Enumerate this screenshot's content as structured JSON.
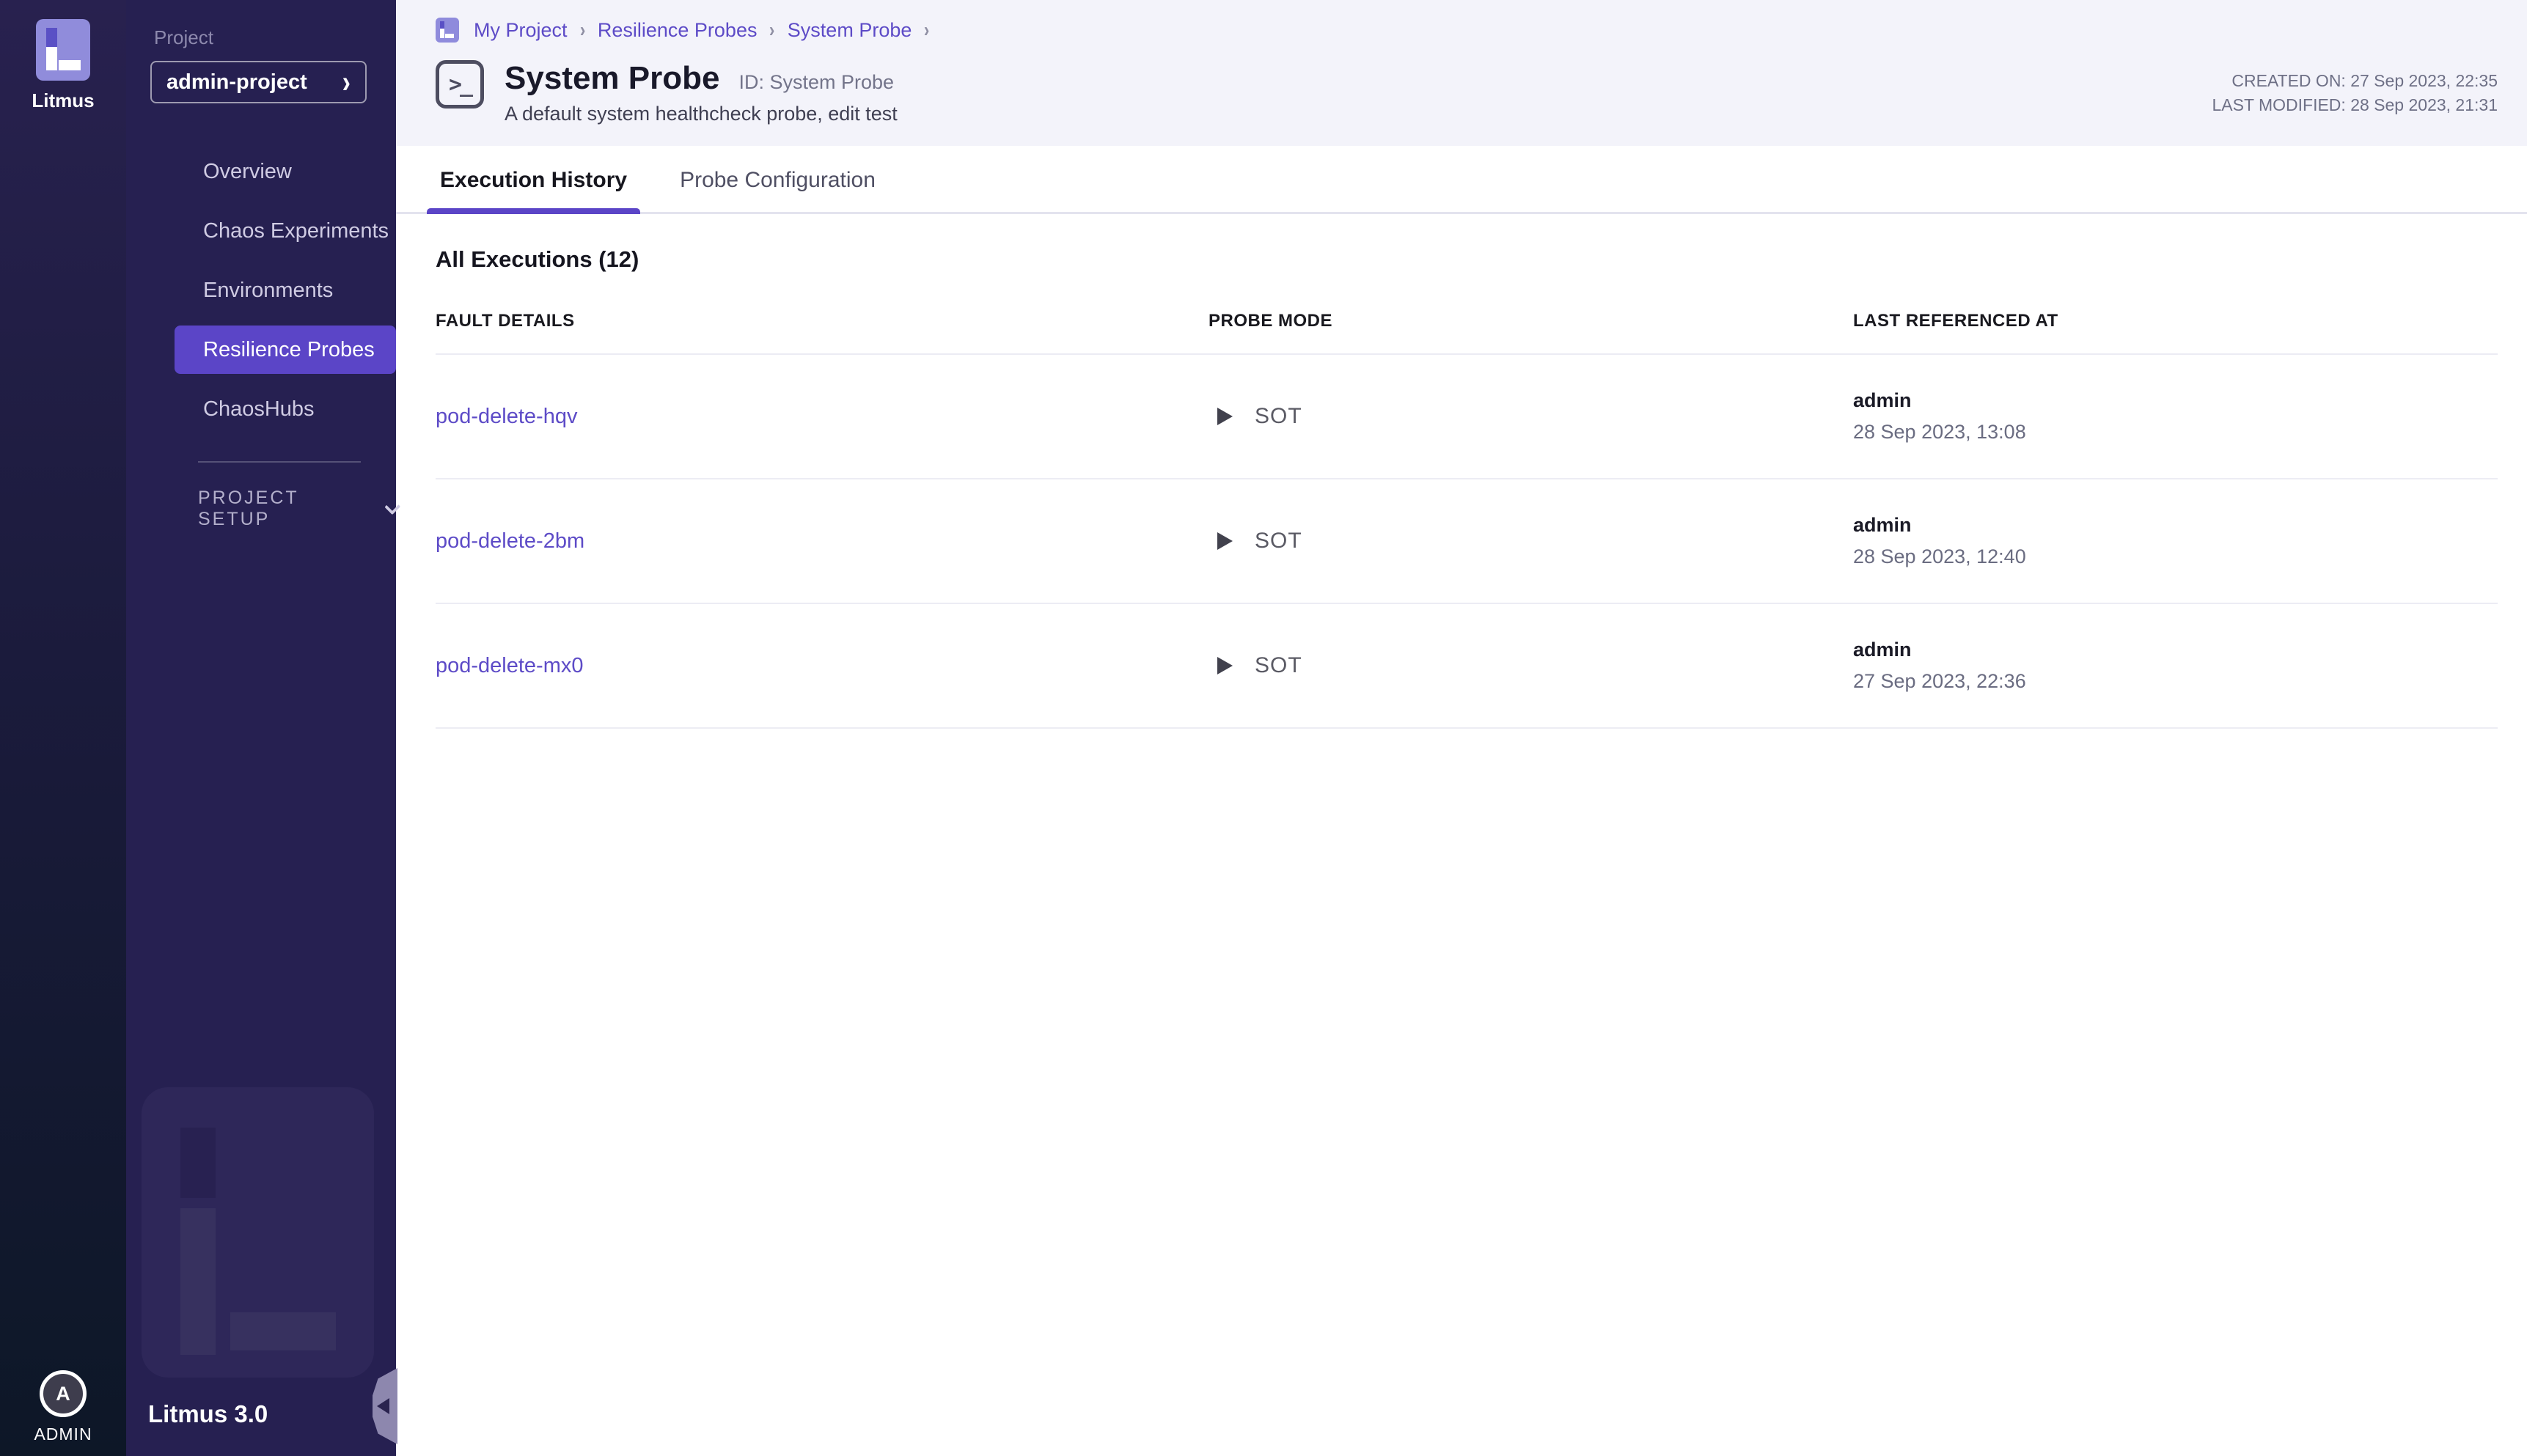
{
  "brand": {
    "name": "Litmus",
    "version_label": "Litmus 3.0",
    "user_initial": "A",
    "user_label": "ADMIN"
  },
  "sidebar": {
    "project_label": "Project",
    "project_name": "admin-project",
    "nav_items": [
      {
        "label": "Overview",
        "active": false
      },
      {
        "label": "Chaos Experiments",
        "active": false
      },
      {
        "label": "Environments",
        "active": false
      },
      {
        "label": "Resilience Probes",
        "active": true
      },
      {
        "label": "ChaosHubs",
        "active": false
      }
    ],
    "section_label": "PROJECT SETUP"
  },
  "breadcrumb": {
    "items": [
      "My Project",
      "Resilience Probes",
      "System Probe"
    ]
  },
  "header": {
    "title": "System Probe",
    "id_label": "ID: System Probe",
    "subtitle": "A default system healthcheck probe, edit test",
    "created_on": "CREATED ON: 27 Sep 2023, 22:35",
    "last_modified": "LAST MODIFIED: 28 Sep 2023, 21:31"
  },
  "tabs": [
    {
      "label": "Execution History",
      "active": true
    },
    {
      "label": "Probe Configuration",
      "active": false
    }
  ],
  "executions": {
    "heading": "All Executions (12)",
    "columns": [
      "FAULT DETAILS",
      "PROBE MODE",
      "LAST REFERENCED AT"
    ],
    "rows": [
      {
        "fault": "pod-delete-hqv",
        "mode": "SOT",
        "user": "admin",
        "time": "28 Sep 2023, 13:08"
      },
      {
        "fault": "pod-delete-2bm",
        "mode": "SOT",
        "user": "admin",
        "time": "28 Sep 2023, 12:40"
      },
      {
        "fault": "pod-delete-mx0",
        "mode": "SOT",
        "user": "admin",
        "time": "27 Sep 2023, 22:36"
      }
    ]
  },
  "colors": {
    "accent": "#5b45c7",
    "link": "#5d4bc7",
    "sidebar_bg": "#262051",
    "rail_gradient_top": "#28214f",
    "rail_gradient_bottom": "#0d1727",
    "header_band": "#f3f3fa"
  }
}
